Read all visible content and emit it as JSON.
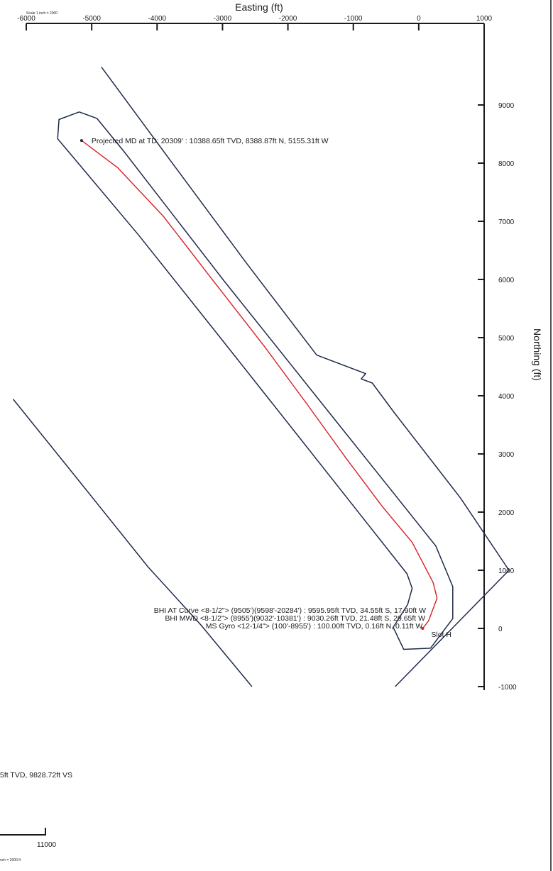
{
  "chart_data": {
    "type": "line",
    "title": "",
    "xlabel": "Easting (ft)",
    "ylabel": "Northing (ft)",
    "xlim": [
      -6000,
      1500
    ],
    "ylim": [
      -1000,
      9700
    ],
    "grid": false,
    "x_ticks": [
      -6000,
      -5000,
      -4000,
      -3000,
      -2000,
      -1000,
      0,
      1000
    ],
    "x_tick_labels": [
      "-6000",
      "-5000",
      "-4000",
      "-3000",
      "-2000",
      "-1000",
      "0",
      "1000"
    ],
    "y_ticks": [
      9000,
      8000,
      7000,
      6000,
      5000,
      4000,
      3000,
      2000,
      1000,
      0,
      -1000
    ],
    "y_tick_labels": [
      "9000",
      "8000",
      "7000",
      "6000",
      "5000",
      "4000",
      "3000",
      "2000",
      "1000",
      "0",
      "-1000"
    ],
    "scale_note": "Scale 1 inch = 2000",
    "series": [
      {
        "color": "#d81f26",
        "points": [
          [
            60,
            0
          ],
          [
            150,
            130
          ],
          [
            280,
            520
          ],
          [
            220,
            790
          ],
          [
            -100,
            1480
          ],
          [
            -560,
            2100
          ],
          [
            -1120,
            2940
          ],
          [
            -1710,
            3860
          ],
          [
            -2360,
            4850
          ],
          [
            -3150,
            5990
          ],
          [
            -3900,
            7080
          ],
          [
            -4600,
            7920
          ],
          [
            -5155,
            8389
          ]
        ]
      },
      {
        "color": "#1f2a4a",
        "points": [
          [
            -5190,
            8880
          ],
          [
            -5500,
            8750
          ],
          [
            -5520,
            8420
          ],
          [
            -4280,
            6760
          ],
          [
            -3020,
            4980
          ],
          [
            -1780,
            3220
          ],
          [
            -180,
            940
          ],
          [
            -100,
            690
          ],
          [
            -170,
            410
          ],
          [
            -390,
            20
          ],
          [
            -230,
            -360
          ],
          [
            180,
            -340
          ],
          [
            520,
            170
          ],
          [
            520,
            720
          ],
          [
            260,
            1420
          ],
          [
            -1360,
            3700
          ],
          [
            -2980,
            5980
          ],
          [
            -4520,
            8220
          ],
          [
            -4920,
            8770
          ],
          [
            -5190,
            8880
          ]
        ]
      },
      {
        "color": "#1f2a4a",
        "points": [
          [
            -4850,
            9650
          ],
          [
            -3820,
            8080
          ],
          [
            -2640,
            6290
          ],
          [
            -1560,
            4700
          ],
          [
            -810,
            4380
          ],
          [
            -880,
            4290
          ],
          [
            -710,
            4220
          ],
          [
            -380,
            3720
          ],
          [
            640,
            2240
          ],
          [
            1380,
            1000
          ],
          [
            -360,
            -1000
          ]
        ]
      },
      {
        "color": "#1f2a4a",
        "points": [
          [
            -6200,
            3940
          ],
          [
            -5210,
            2560
          ],
          [
            -4140,
            1060
          ],
          [
            -3330,
            60
          ],
          [
            -2550,
            -1000
          ]
        ]
      }
    ],
    "annotations": [
      {
        "text": "Projected MD at TD: 20309' : 10388.65ft TVD, 8388.87ft N, 5155.31ft W",
        "x": -5155,
        "y": 8389
      },
      {
        "text": "BHI AT Curve <8-1/2\"> (9505')(9598'-20284') : 9595.95ft TVD, 34.55ft S, 17.90ft W",
        "x": 110,
        "y": 300
      },
      {
        "text": "BHI MWD <8-1/2\"> (8955')(9032'-10381') : 9030.26ft TVD, 21.48ft S, 29.65ft W",
        "x": 100,
        "y": 150
      },
      {
        "text": "MS Gyro <12-1/4\"> (100'-8955') : 100.00ft TVD, 0.16ft N, 0.11ft W",
        "x": 60,
        "y": 0
      },
      {
        "text": "Slot H",
        "x": 60,
        "y": 0
      }
    ]
  },
  "fragments": {
    "left_label": "5ft TVD, 9828.72ft VS",
    "bottom_tick": "11000",
    "bottom_note": "nch = 2000 ft"
  }
}
